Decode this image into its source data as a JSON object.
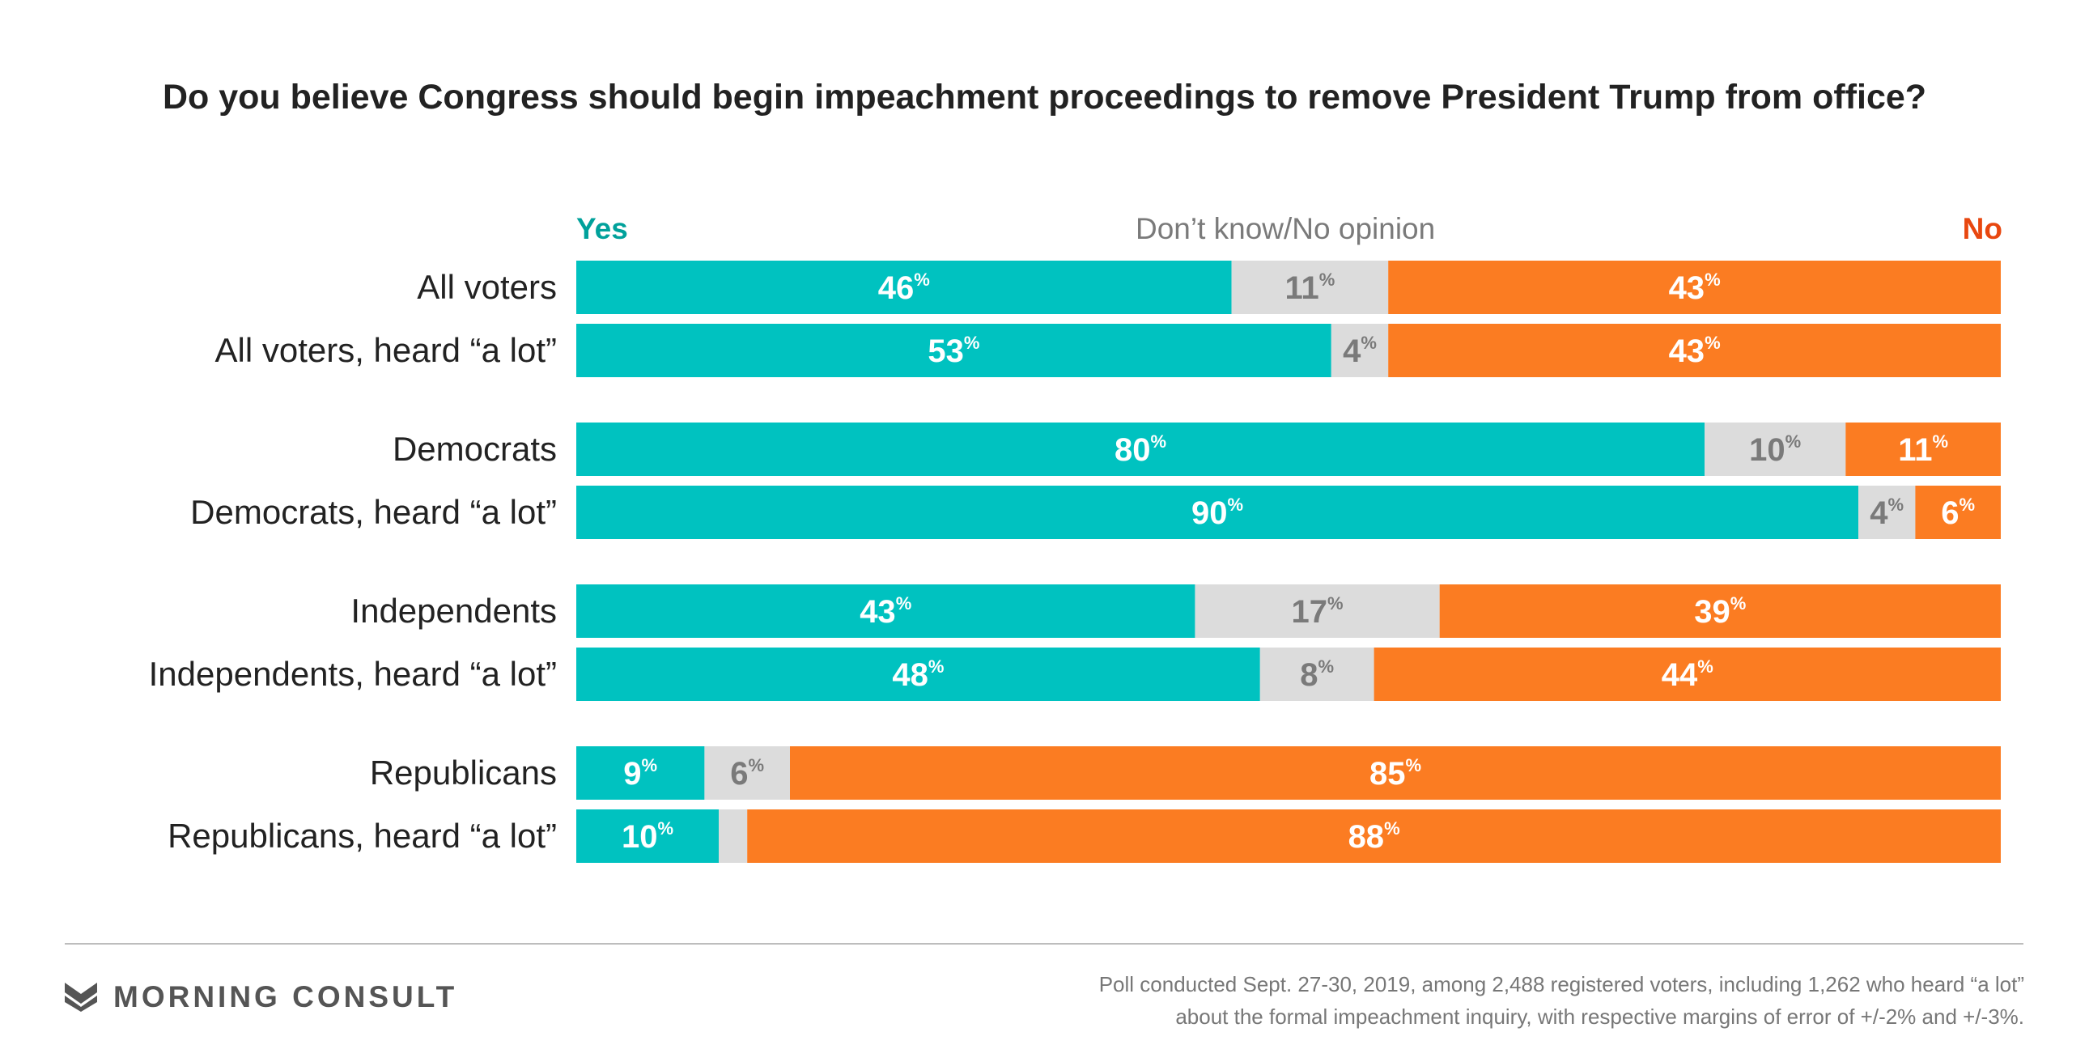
{
  "chart_data": {
    "type": "bar",
    "stacked": true,
    "orientation": "horizontal",
    "title": "Do you believe Congress should begin impeachment proceedings to remove President Trump from office?",
    "legend": [
      "Yes",
      "Don’t know/No opinion",
      "No"
    ],
    "categories": [
      "All voters",
      "All voters, heard “a lot”",
      "Democrats",
      "Democrats, heard “a lot”",
      "Independents",
      "Independents, heard “a lot”",
      "Republicans",
      "Republicans, heard “a lot”"
    ],
    "groups": [
      [
        0,
        1
      ],
      [
        2,
        3
      ],
      [
        4,
        5
      ],
      [
        6,
        7
      ]
    ],
    "series": [
      {
        "name": "Yes",
        "color": "#00c2c0",
        "label_color": "#ffffff",
        "values": [
          46,
          53,
          80,
          90,
          43,
          48,
          9,
          10
        ]
      },
      {
        "name": "Don’t know/No opinion",
        "color": "#dcdcdc",
        "label_color": "#7a7a7a",
        "values": [
          11,
          4,
          10,
          4,
          17,
          8,
          6,
          2
        ]
      },
      {
        "name": "No",
        "color": "#fb7c22",
        "label_color": "#ffffff",
        "values": [
          43,
          43,
          11,
          6,
          39,
          44,
          85,
          88
        ]
      }
    ],
    "label_shown": [
      [
        true,
        true,
        true,
        true,
        true,
        true,
        true,
        true
      ],
      [
        true,
        true,
        true,
        true,
        true,
        true,
        true,
        false
      ],
      [
        true,
        true,
        true,
        true,
        true,
        true,
        true,
        true
      ]
    ],
    "unit": "%",
    "xlim": [
      0,
      100
    ],
    "grid": false
  },
  "colors": {
    "yes_legend": "#00a19b",
    "dk_legend": "#7a7a7a",
    "no_legend": "#e8470f"
  },
  "footer": {
    "brand": "MORNING CONSULT",
    "brand_icon": "morning-consult-chevron-icon",
    "note_line1": "Poll conducted Sept. 27-30, 2019, among 2,488 registered voters, including 1,262 who heard “a lot”",
    "note_line2": "about the formal impeachment inquiry, with respective margins of error of +/-2% and +/-3%."
  }
}
